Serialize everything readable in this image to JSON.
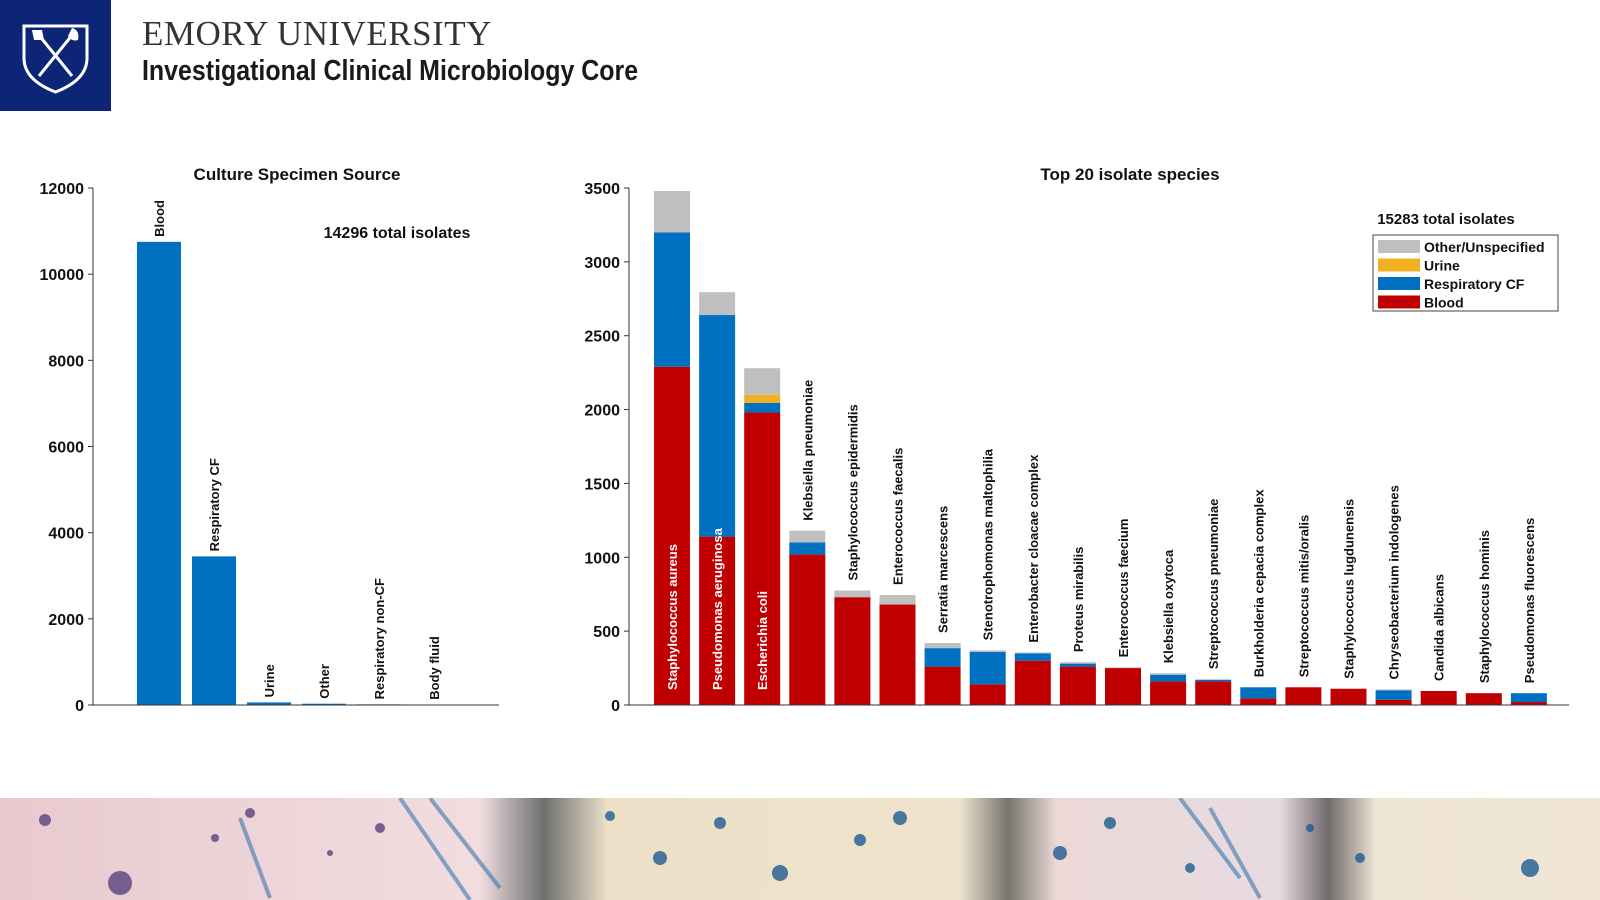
{
  "header": {
    "university": "EMORY UNIVERSITY",
    "core": "Investigational Clinical Microbiology Core"
  },
  "icons": {
    "logo": "emory-shield-icon"
  },
  "colors": {
    "brand_navy": "#0c2577",
    "bar_blue": "#0070c0",
    "blood": "#c00000",
    "respiratory_cf": "#0070c0",
    "urine": "#f0b020",
    "other": "#bfbfbf"
  },
  "chart_data": [
    {
      "type": "bar",
      "title": "Culture Specimen Source",
      "annotation": "14296 total isolates",
      "categories": [
        "Blood",
        "Respiratory CF",
        "Urine",
        "Other",
        "Respiratory non-CF",
        "Body fluid"
      ],
      "values": [
        10750,
        3450,
        60,
        30,
        15,
        5
      ],
      "ylim": [
        0,
        12000
      ],
      "yticks": [
        0,
        2000,
        4000,
        6000,
        8000,
        10000,
        12000
      ],
      "grid": false
    },
    {
      "type": "bar",
      "stacked": true,
      "title": "Top 20 isolate species",
      "annotation": "15283 total isolates",
      "legend_position": "top-right",
      "legend_order": [
        "Other/Unspecified",
        "Urine",
        "Respiratory CF",
        "Blood"
      ],
      "categories": [
        "Staphylococcus aureus",
        "Pseudomonas aeruginosa",
        "Escherichia coli",
        "Klebsiella pneumoniae",
        "Staphylococcus epidermidis",
        "Enterococcus faecalis",
        "Serratia marcescens",
        "Stenotrophomonas maltophilia",
        "Enterobacter cloacae complex",
        "Proteus mirabilis",
        "Enterococcus faecium",
        "Klebsiella oxytoca",
        "Streptococcus pneumoniae",
        "Burkholderia cepacia complex",
        "Streptococcus mitis/oralis",
        "Staphylococcus lugdunensis",
        "Chryseobacterium indologenes",
        "Candida albicans",
        "Staphylococcus hominis",
        "Pseudomonas fluorescens"
      ],
      "series": [
        {
          "name": "Blood",
          "color": "#c00000",
          "values": [
            2290,
            1140,
            1980,
            1020,
            730,
            680,
            260,
            140,
            300,
            260,
            250,
            160,
            160,
            45,
            120,
            110,
            35,
            95,
            80,
            20
          ]
        },
        {
          "name": "Respiratory CF",
          "color": "#0070c0",
          "values": [
            910,
            1500,
            65,
            80,
            0,
            0,
            125,
            220,
            50,
            20,
            0,
            45,
            10,
            75,
            0,
            0,
            65,
            0,
            0,
            60
          ]
        },
        {
          "name": "Urine",
          "color": "#f0b020",
          "values": [
            0,
            0,
            55,
            0,
            0,
            0,
            0,
            0,
            0,
            0,
            0,
            0,
            0,
            0,
            0,
            0,
            0,
            0,
            0,
            0
          ]
        },
        {
          "name": "Other/Unspecified",
          "color": "#bfbfbf",
          "values": [
            280,
            155,
            180,
            80,
            45,
            65,
            35,
            10,
            5,
            10,
            5,
            10,
            5,
            0,
            0,
            0,
            5,
            0,
            0,
            0
          ]
        }
      ],
      "ylim": [
        0,
        3500
      ],
      "yticks": [
        0,
        500,
        1000,
        1500,
        2000,
        2500,
        3000,
        3500
      ],
      "grid": false
    }
  ]
}
